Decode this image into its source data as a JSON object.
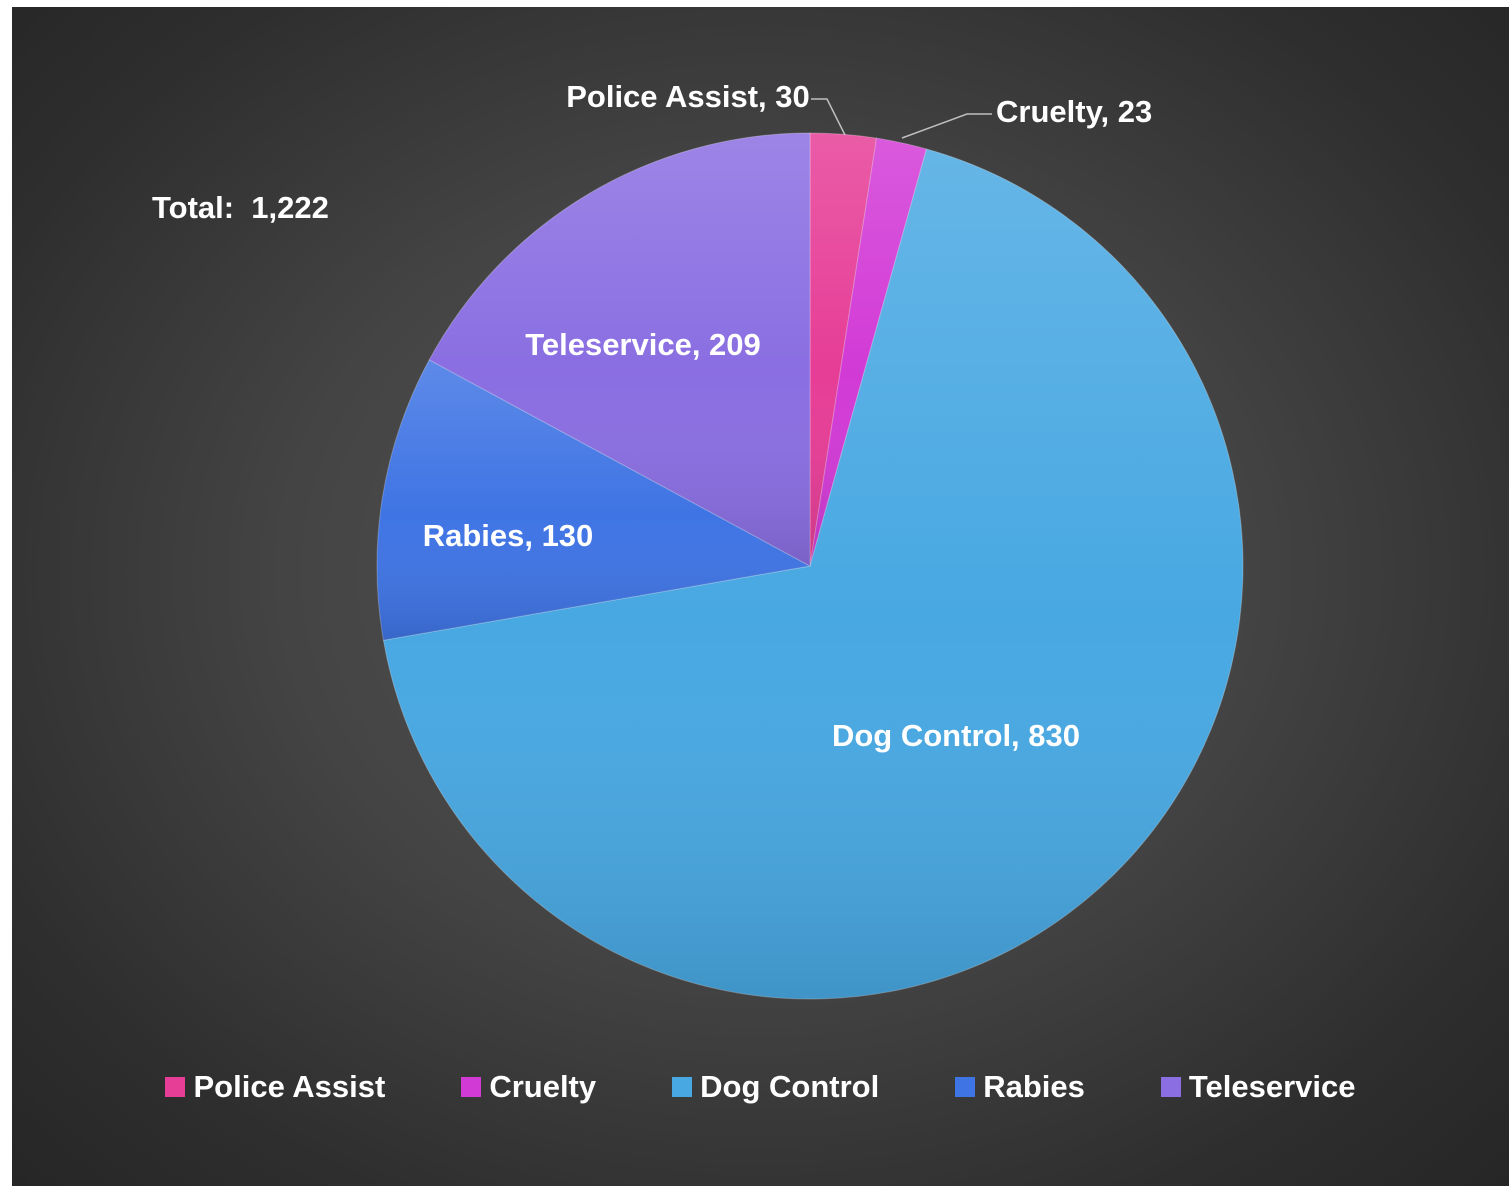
{
  "total_text": "Total:  1,222",
  "chart_data": {
    "type": "pie",
    "title": "",
    "start_angle_deg": 0,
    "slices": [
      {
        "label": "Police Assist",
        "value": 30,
        "color": "#e63d96",
        "data_label": "Police Assist, 30"
      },
      {
        "label": "Cruelty",
        "value": 23,
        "color": "#d23ad6",
        "data_label": "Cruelty, 23"
      },
      {
        "label": "Dog Control",
        "value": 830,
        "color": "#48a8e2",
        "data_label": "Dog Control, 830"
      },
      {
        "label": "Rabies",
        "value": 130,
        "color": "#3f74e4",
        "data_label": "Rabies, 130"
      },
      {
        "label": "Teleservice",
        "value": 209,
        "color": "#8a6ee2",
        "data_label": "Teleservice, 209"
      }
    ],
    "legend": {
      "placement": "bottom",
      "entries": [
        "Police Assist",
        "Cruelty",
        "Dog Control",
        "Rabies",
        "Teleservice"
      ]
    }
  }
}
